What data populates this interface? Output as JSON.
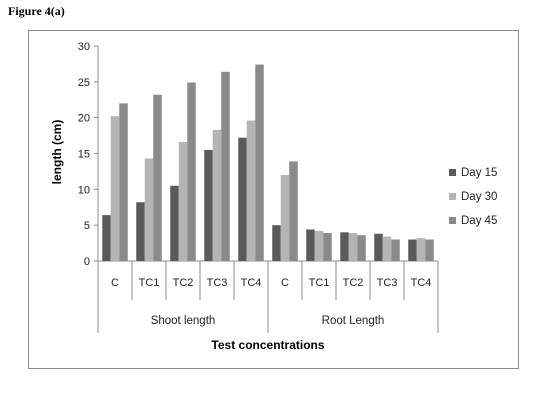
{
  "figure_label": "Figure 4(a)",
  "chart_data": {
    "type": "bar",
    "title": "",
    "xlabel": "Test concentrations",
    "ylabel": "length (cm)",
    "ylim": [
      0,
      30
    ],
    "yticks": [
      0,
      5,
      10,
      15,
      20,
      25,
      30
    ],
    "grid": false,
    "legend_position": "right",
    "groups": [
      {
        "name": "Shoot length",
        "categories": [
          "C",
          "TC1",
          "TC2",
          "TC3",
          "TC4"
        ]
      },
      {
        "name": "Root Length",
        "categories": [
          "C",
          "TC1",
          "TC2",
          "TC3",
          "TC4"
        ]
      }
    ],
    "categories": [
      "C",
      "TC1",
      "TC2",
      "TC3",
      "TC4",
      "C",
      "TC1",
      "TC2",
      "TC3",
      "TC4"
    ],
    "series": [
      {
        "name": "Day 15",
        "color": "#5a5a5a",
        "values": [
          6.4,
          8.2,
          10.5,
          15.5,
          17.2,
          5.0,
          4.4,
          4.0,
          3.8,
          3.0
        ]
      },
      {
        "name": "Day 30",
        "color": "#b4b4b4",
        "values": [
          20.2,
          14.3,
          16.6,
          18.3,
          19.6,
          12.0,
          4.2,
          3.9,
          3.4,
          3.2
        ]
      },
      {
        "name": "Day 45",
        "color": "#8a8a8a",
        "values": [
          22.0,
          23.2,
          24.9,
          26.4,
          27.4,
          13.9,
          3.9,
          3.6,
          3.0,
          3.0
        ]
      }
    ]
  }
}
